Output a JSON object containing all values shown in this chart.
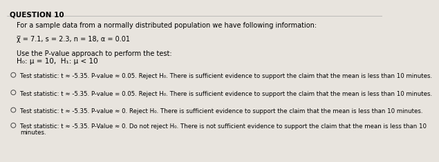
{
  "title": "QUESTION 10",
  "bg_color": "#e8e4de",
  "line1": "For a sample data from a normally distributed population we have following information:",
  "line2": "χ̅ = 7.1, s = 2.3, n = 18, α = 0.01",
  "line3": "Use the P-value approach to perform the test:",
  "line4": "H₀: μ = 10,  H₁: μ < 10",
  "options": [
    "Test statistic: t ≈ -5.35. P-value ≈ 0.05. Reject H₀. There is sufficient evidence to support the claim that the mean is less than 10 minutes.",
    "Test statistic: t ≈ -5.35. P-value = 0.05. Reject H₀. There is sufficient evidence to support the claim that the mean is less than 10 minutes.",
    "Test statistic: t ≈ -5.35. P-value ≈ 0. Reject H₀. There is sufficient evidence to support the claim that the mean is less than 10 minutes.",
    "Test statistic: t ≈ -5.35. P-Value ≈ 0. Do not reject H₀. There is not sufficient evidence to support the claim that the mean is less than 10 minutes."
  ],
  "title_fontsize": 7.5,
  "body_fontsize": 7.0,
  "hyp_fontsize": 7.5,
  "option_fontsize": 6.2
}
